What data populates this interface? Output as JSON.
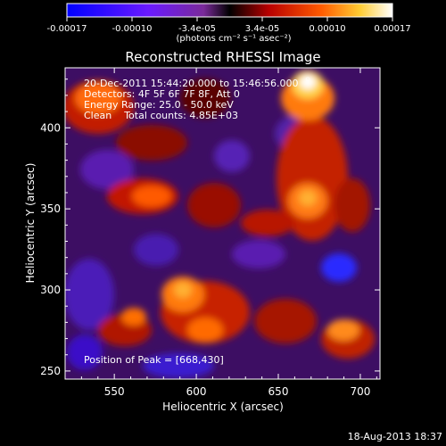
{
  "colorbar": {
    "tick_labels": [
      "-0.00017",
      "-0.00010",
      "-3.4e-05",
      "3.4e-05",
      "0.00010",
      "0.00017"
    ],
    "unit_label": "(photons cm⁻² s⁻¹ asec⁻²)",
    "range": [
      -0.00017,
      0.00017
    ]
  },
  "chart_data": {
    "type": "heatmap",
    "title": "Reconstructed RHESSI Image",
    "xlabel": "Heliocentric X (arcsec)",
    "ylabel": "Heliocentric Y (arcsec)",
    "xlim": [
      520,
      712
    ],
    "ylim": [
      245,
      437
    ],
    "x_ticks": [
      550,
      600,
      650,
      700
    ],
    "y_ticks": [
      250,
      300,
      350,
      400
    ],
    "x_tick_labels": [
      "550",
      "600",
      "650",
      "700"
    ],
    "y_tick_labels": [
      "250",
      "300",
      "350",
      "400"
    ],
    "peak_position": [
      668,
      430
    ],
    "colormap": "blue-purple-red-yellow-white"
  },
  "annotations": {
    "time_range": "20-Dec-2011 15:44:20.000 to 15:46:56.000",
    "detectors": "Detectors: 4F 5F 6F 7F 8F, Att 0",
    "energy": "Energy Range: 25.0 - 50.0 keV",
    "method": "Clean    Total counts: 4.85E+03",
    "peak": "Position of Peak = [668,430]"
  },
  "footer_timestamp": "18-Aug-2013 18:37"
}
